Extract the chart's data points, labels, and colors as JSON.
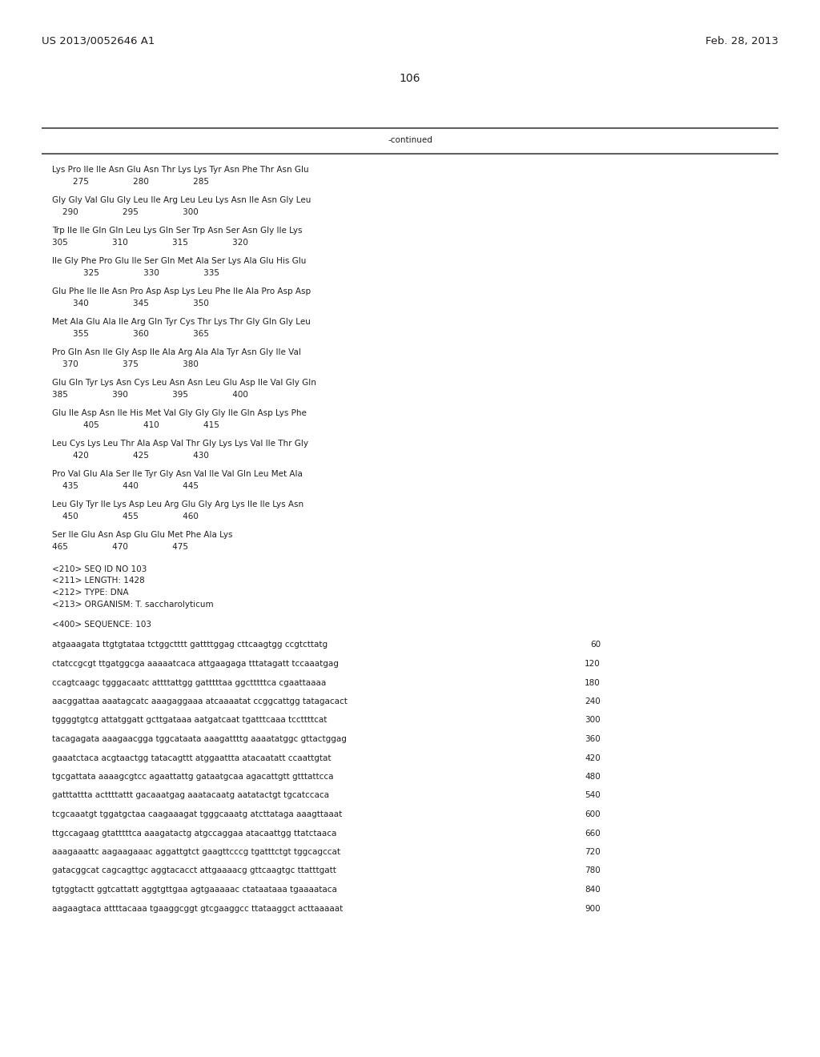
{
  "header_left": "US 2013/0052646 A1",
  "header_right": "Feb. 28, 2013",
  "page_number": "106",
  "continued_label": "-continued",
  "background_color": "#ffffff",
  "text_color": "#231f20",
  "font_size_header": 9.5,
  "font_size_body": 7.5,
  "font_size_page": 10,
  "sequence_blocks": [
    {
      "line1": "Lys Pro Ile Ile Asn Glu Asn Thr Lys Lys Tyr Asn Phe Thr Asn Glu",
      "line2": "        275                 280                 285"
    },
    {
      "line1": "Gly Gly Val Glu Gly Leu Ile Arg Leu Leu Lys Asn Ile Asn Gly Leu",
      "line2": "    290                 295                 300"
    },
    {
      "line1": "Trp Ile Ile Gln Gln Leu Lys Gln Ser Trp Asn Ser Asn Gly Ile Lys",
      "line2": "305                 310                 315                 320"
    },
    {
      "line1": "Ile Gly Phe Pro Glu Ile Ser Gln Met Ala Ser Lys Ala Glu His Glu",
      "line2": "            325                 330                 335"
    },
    {
      "line1": "Glu Phe Ile Ile Asn Pro Asp Asp Lys Leu Phe Ile Ala Pro Asp Asp",
      "line2": "        340                 345                 350"
    },
    {
      "line1": "Met Ala Glu Ala Ile Arg Gln Tyr Cys Thr Lys Thr Gly Gln Gly Leu",
      "line2": "        355                 360                 365"
    },
    {
      "line1": "Pro Gln Asn Ile Gly Asp Ile Ala Arg Ala Ala Tyr Asn Gly Ile Val",
      "line2": "    370                 375                 380"
    },
    {
      "line1": "Glu Gln Tyr Lys Asn Cys Leu Asn Asn Leu Glu Asp Ile Val Gly Gln",
      "line2": "385                 390                 395                 400"
    },
    {
      "line1": "Glu Ile Asp Asn Ile His Met Val Gly Gly Gly Ile Gln Asp Lys Phe",
      "line2": "            405                 410                 415"
    },
    {
      "line1": "Leu Cys Lys Leu Thr Ala Asp Val Thr Gly Lys Lys Val Ile Thr Gly",
      "line2": "        420                 425                 430"
    },
    {
      "line1": "Pro Val Glu Ala Ser Ile Tyr Gly Asn Val Ile Val Gln Leu Met Ala",
      "line2": "    435                 440                 445"
    },
    {
      "line1": "Leu Gly Tyr Ile Lys Asp Leu Arg Glu Gly Arg Lys Ile Ile Lys Asn",
      "line2": "    450                 455                 460"
    },
    {
      "line1": "Ser Ile Glu Asn Asp Glu Glu Met Phe Ala Lys",
      "line2": "465                 470                 475"
    }
  ],
  "metadata_lines": [
    "<210> SEQ ID NO 103",
    "<211> LENGTH: 1428",
    "<212> TYPE: DNA",
    "<213> ORGANISM: T. saccharolyticum"
  ],
  "sequence_label": "<400> SEQUENCE: 103",
  "dna_lines": [
    {
      "seq": "atgaaagata ttgtgtataa tctggctttt gattttggag cttcaagtgg ccgtcttatg",
      "num": "60"
    },
    {
      "seq": "ctatccgcgt ttgatggcga aaaaatcaca attgaagaga tttatagatt tccaaatgag",
      "num": "120"
    },
    {
      "seq": "ccagtcaagc tgggacaatc attttattgg gatttttaa ggctttttca cgaattaaaa",
      "num": "180"
    },
    {
      "seq": "aacggattaa aaatagcatc aaagaggaaa atcaaaatat ccggcattgg tatagacact",
      "num": "240"
    },
    {
      "seq": "tggggtgtcg attatggatt gcttgataaa aatgatcaat tgatttcaaa tccttttcat",
      "num": "300"
    },
    {
      "seq": "tacagagata aaagaacgga tggcataata aaagattttg aaaatatggc gttactggag",
      "num": "360"
    },
    {
      "seq": "gaaatctaca acgtaactgg tatacagttt atggaattta atacaatatt ccaattgtat",
      "num": "420"
    },
    {
      "seq": "tgcgattata aaaagcgtcc agaattattg gataatgcaa agacattgtt gtttattcca",
      "num": "480"
    },
    {
      "seq": "gatttattta acttttattt gacaaatgag aaatacaatg aatatactgt tgcatccaca",
      "num": "540"
    },
    {
      "seq": "tcgcaaatgt tggatgctaa caagaaagat tgggcaaatg atcttataga aaagttaaat",
      "num": "600"
    },
    {
      "seq": "ttgccagaag gtatttttca aaagatactg atgccaggaa atacaattgg ttatctaaca",
      "num": "660"
    },
    {
      "seq": "aaagaaattc aagaagaaac aggattgtct gaagttcccg tgatttctgt tggcagccat",
      "num": "720"
    },
    {
      "seq": "gatacggcat cagcagttgc aggtacacct attgaaaacg gttcaagtgc ttatttgatt",
      "num": "780"
    },
    {
      "seq": "tgtggtactt ggtcattatt aggtgttgaa agtgaaaaac ctataataaa tgaaaataca",
      "num": "840"
    },
    {
      "seq": "aagaagtaca attttacaaa tgaaggcggt gtcgaaggcc ttataaggct acttaaaaat",
      "num": "900"
    }
  ]
}
